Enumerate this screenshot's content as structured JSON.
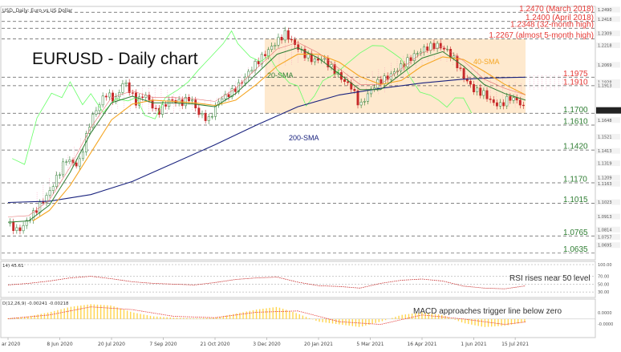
{
  "header": {
    "symbol_line": "USD, Daily:  Euro vs US Dollar"
  },
  "main_title": "EURUSD - Daily chart",
  "colors": {
    "level_text": "#2e7d32",
    "resistance_text": "#e53935",
    "candle_up": "#2e7d32",
    "candle_down": "#c62828",
    "sma20": "#2e7d32",
    "sma40": "#f5a623",
    "sma200": "#1a237e",
    "range_fill": "#fde2bd",
    "ichimoku_cloud": "#f48fb1",
    "chikou": "#66ff66",
    "macd_hist": "#ffd54f",
    "macd_signal": "#e53935"
  },
  "chart_data": [
    {
      "type": "line",
      "title": "EURUSD - Daily chart",
      "x_ticks": [
        "ar 2020",
        "8 Jun 2020",
        "20 Jul 2020",
        "7 Sep 2020",
        "21 Oct 2020",
        "3 Dec 2020",
        "20 Jan 2021",
        "5 Mar 2021",
        "16 Apr 2021",
        "1 Jun 2021",
        "15 Jul 2021"
      ],
      "ylim": [
        1.062,
        1.249
      ],
      "price_path": [
        [
          0,
          1.086
        ],
        [
          5,
          1.08
        ],
        [
          12,
          1.093
        ],
        [
          20,
          1.11
        ],
        [
          28,
          1.135
        ],
        [
          34,
          1.13
        ],
        [
          40,
          1.165
        ],
        [
          47,
          1.185
        ],
        [
          52,
          1.18
        ],
        [
          56,
          1.195
        ],
        [
          62,
          1.178
        ],
        [
          66,
          1.185
        ],
        [
          72,
          1.17
        ],
        [
          78,
          1.18
        ],
        [
          84,
          1.178
        ],
        [
          88,
          1.182
        ],
        [
          92,
          1.17
        ],
        [
          97,
          1.165
        ],
        [
          102,
          1.18
        ],
        [
          108,
          1.186
        ],
        [
          113,
          1.194
        ],
        [
          118,
          1.205
        ],
        [
          124,
          1.215
        ],
        [
          130,
          1.225
        ],
        [
          134,
          1.231
        ],
        [
          137,
          1.225
        ],
        [
          143,
          1.215
        ],
        [
          148,
          1.21
        ],
        [
          152,
          1.212
        ],
        [
          156,
          1.205
        ],
        [
          162,
          1.195
        ],
        [
          166,
          1.19
        ],
        [
          170,
          1.175
        ],
        [
          174,
          1.185
        ],
        [
          178,
          1.193
        ],
        [
          184,
          1.198
        ],
        [
          190,
          1.206
        ],
        [
          196,
          1.214
        ],
        [
          202,
          1.22
        ],
        [
          207,
          1.222
        ],
        [
          212,
          1.218
        ],
        [
          216,
          1.21
        ],
        [
          220,
          1.198
        ],
        [
          225,
          1.188
        ],
        [
          230,
          1.185
        ],
        [
          234,
          1.178
        ],
        [
          238,
          1.176
        ],
        [
          242,
          1.182
        ],
        [
          246,
          1.18
        ],
        [
          250,
          1.172
        ]
      ],
      "sma20": [
        [
          0,
          1.087
        ],
        [
          10,
          1.088
        ],
        [
          20,
          1.1
        ],
        [
          30,
          1.125
        ],
        [
          40,
          1.155
        ],
        [
          50,
          1.178
        ],
        [
          60,
          1.183
        ],
        [
          70,
          1.178
        ],
        [
          80,
          1.178
        ],
        [
          90,
          1.177
        ],
        [
          100,
          1.175
        ],
        [
          110,
          1.185
        ],
        [
          120,
          1.2
        ],
        [
          130,
          1.215
        ],
        [
          140,
          1.22
        ],
        [
          150,
          1.212
        ],
        [
          160,
          1.2
        ],
        [
          170,
          1.188
        ],
        [
          180,
          1.188
        ],
        [
          190,
          1.2
        ],
        [
          200,
          1.212
        ],
        [
          210,
          1.217
        ],
        [
          220,
          1.206
        ],
        [
          230,
          1.192
        ],
        [
          240,
          1.185
        ],
        [
          250,
          1.18
        ]
      ],
      "sma40": [
        [
          12,
          1.088
        ],
        [
          20,
          1.096
        ],
        [
          30,
          1.115
        ],
        [
          40,
          1.14
        ],
        [
          50,
          1.165
        ],
        [
          60,
          1.177
        ],
        [
          70,
          1.18
        ],
        [
          80,
          1.179
        ],
        [
          90,
          1.178
        ],
        [
          100,
          1.176
        ],
        [
          110,
          1.18
        ],
        [
          120,
          1.192
        ],
        [
          130,
          1.206
        ],
        [
          140,
          1.215
        ],
        [
          150,
          1.215
        ],
        [
          160,
          1.209
        ],
        [
          170,
          1.198
        ],
        [
          180,
          1.192
        ],
        [
          190,
          1.195
        ],
        [
          200,
          1.206
        ],
        [
          210,
          1.213
        ],
        [
          220,
          1.211
        ],
        [
          230,
          1.202
        ],
        [
          240,
          1.192
        ],
        [
          250,
          1.184
        ]
      ],
      "sma200": [
        [
          0,
          1.102
        ],
        [
          20,
          1.103
        ],
        [
          40,
          1.108
        ],
        [
          60,
          1.118
        ],
        [
          80,
          1.132
        ],
        [
          100,
          1.146
        ],
        [
          120,
          1.161
        ],
        [
          140,
          1.175
        ],
        [
          160,
          1.184
        ],
        [
          180,
          1.189
        ],
        [
          200,
          1.193
        ],
        [
          220,
          1.196
        ],
        [
          235,
          1.197
        ],
        [
          250,
          1.1975
        ]
      ],
      "price_axis_ticks": [
        1.249,
        1.2418,
        1.2309,
        1.2218,
        1.2069,
        1.1938,
        1.1913,
        1.1722,
        1.1648,
        1.1521,
        1.1413,
        1.1319,
        1.1209,
        1.1163,
        1.1023,
        1.0913,
        1.0814,
        1.0757,
        1.0695
      ],
      "horizontal_levels": [
        {
          "value": 1.247,
          "label": "1.2470 (March 2018)",
          "kind": "resistance"
        },
        {
          "value": 1.24,
          "label": "1.2400 (April 2018)",
          "kind": "resistance"
        },
        {
          "value": 1.2348,
          "label": "1.2348 (32-month high)",
          "kind": "resistance"
        },
        {
          "value": 1.2267,
          "label": "1.2267 (almost 5-month high)",
          "kind": "resistance"
        },
        {
          "value": 1.1975,
          "label": "1.1975",
          "kind": "resistance"
        },
        {
          "value": 1.191,
          "label": "1.1910",
          "kind": "resistance"
        },
        {
          "value": 1.17,
          "label": "1.1700",
          "kind": "support"
        },
        {
          "value": 1.161,
          "label": "1.1610",
          "kind": "support"
        },
        {
          "value": 1.142,
          "label": "1.1420",
          "kind": "support"
        },
        {
          "value": 1.117,
          "label": "1.1170",
          "kind": "support"
        },
        {
          "value": 1.1015,
          "label": "1.1015",
          "kind": "support"
        },
        {
          "value": 1.0765,
          "label": "1.0765",
          "kind": "support"
        },
        {
          "value": 1.0635,
          "label": "1.0635",
          "kind": "support"
        }
      ],
      "range_box": {
        "x_start": 124,
        "x_end": 250,
        "y_low": 1.17,
        "y_high": 1.2267
      },
      "annotations": [
        "20-SMA",
        "40-SMA",
        "200-SMA"
      ]
    },
    {
      "type": "line",
      "title": "RSI",
      "header": "14) 45.61",
      "ylim": [
        20,
        100
      ],
      "levels": [
        100,
        70,
        50,
        30
      ],
      "tick_labels": [
        "100.00",
        "70.00",
        "50.00",
        "30.00"
      ],
      "annotation": "RSI rises near 50 level",
      "values": [
        [
          0,
          48
        ],
        [
          10,
          52
        ],
        [
          20,
          58
        ],
        [
          30,
          66
        ],
        [
          40,
          70
        ],
        [
          50,
          64
        ],
        [
          60,
          56
        ],
        [
          70,
          52
        ],
        [
          80,
          50
        ],
        [
          90,
          48
        ],
        [
          100,
          54
        ],
        [
          110,
          62
        ],
        [
          120,
          66
        ],
        [
          130,
          68
        ],
        [
          140,
          55
        ],
        [
          150,
          46
        ],
        [
          160,
          44
        ],
        [
          170,
          40
        ],
        [
          180,
          52
        ],
        [
          190,
          60
        ],
        [
          200,
          63
        ],
        [
          210,
          58
        ],
        [
          220,
          45
        ],
        [
          230,
          40
        ],
        [
          240,
          38
        ],
        [
          250,
          45.61
        ]
      ]
    },
    {
      "type": "bar",
      "title": "MACD",
      "header": "D(12,26,9) -0.00241 -0.00218",
      "ylim": [
        -0.012,
        0.013
      ],
      "tick_labels": [
        "0.0000",
        "-0.0000"
      ],
      "annotation": "MACD approaches trigger line below zero",
      "histogram": [
        [
          0,
          0.0005
        ],
        [
          10,
          0.002
        ],
        [
          20,
          0.005
        ],
        [
          30,
          0.009
        ],
        [
          40,
          0.011
        ],
        [
          50,
          0.01
        ],
        [
          60,
          0.005
        ],
        [
          70,
          0.002
        ],
        [
          80,
          0.001
        ],
        [
          90,
          0.0005
        ],
        [
          100,
          0.001
        ],
        [
          110,
          0.004
        ],
        [
          120,
          0.007
        ],
        [
          130,
          0.009
        ],
        [
          140,
          0.004
        ],
        [
          150,
          -0.002
        ],
        [
          160,
          -0.004
        ],
        [
          170,
          -0.006
        ],
        [
          180,
          -0.002
        ],
        [
          190,
          0.003
        ],
        [
          200,
          0.005
        ],
        [
          210,
          0.003
        ],
        [
          220,
          -0.003
        ],
        [
          230,
          -0.006
        ],
        [
          240,
          -0.005
        ],
        [
          250,
          -0.00241
        ]
      ],
      "signal": [
        [
          0,
          0.0002
        ],
        [
          20,
          0.003
        ],
        [
          40,
          0.009
        ],
        [
          60,
          0.007
        ],
        [
          80,
          0.002
        ],
        [
          100,
          0.001
        ],
        [
          120,
          0.005
        ],
        [
          140,
          0.006
        ],
        [
          160,
          -0.002
        ],
        [
          180,
          -0.004
        ],
        [
          200,
          0.003
        ],
        [
          220,
          0.0
        ],
        [
          240,
          -0.004
        ],
        [
          250,
          -0.00218
        ]
      ]
    }
  ]
}
